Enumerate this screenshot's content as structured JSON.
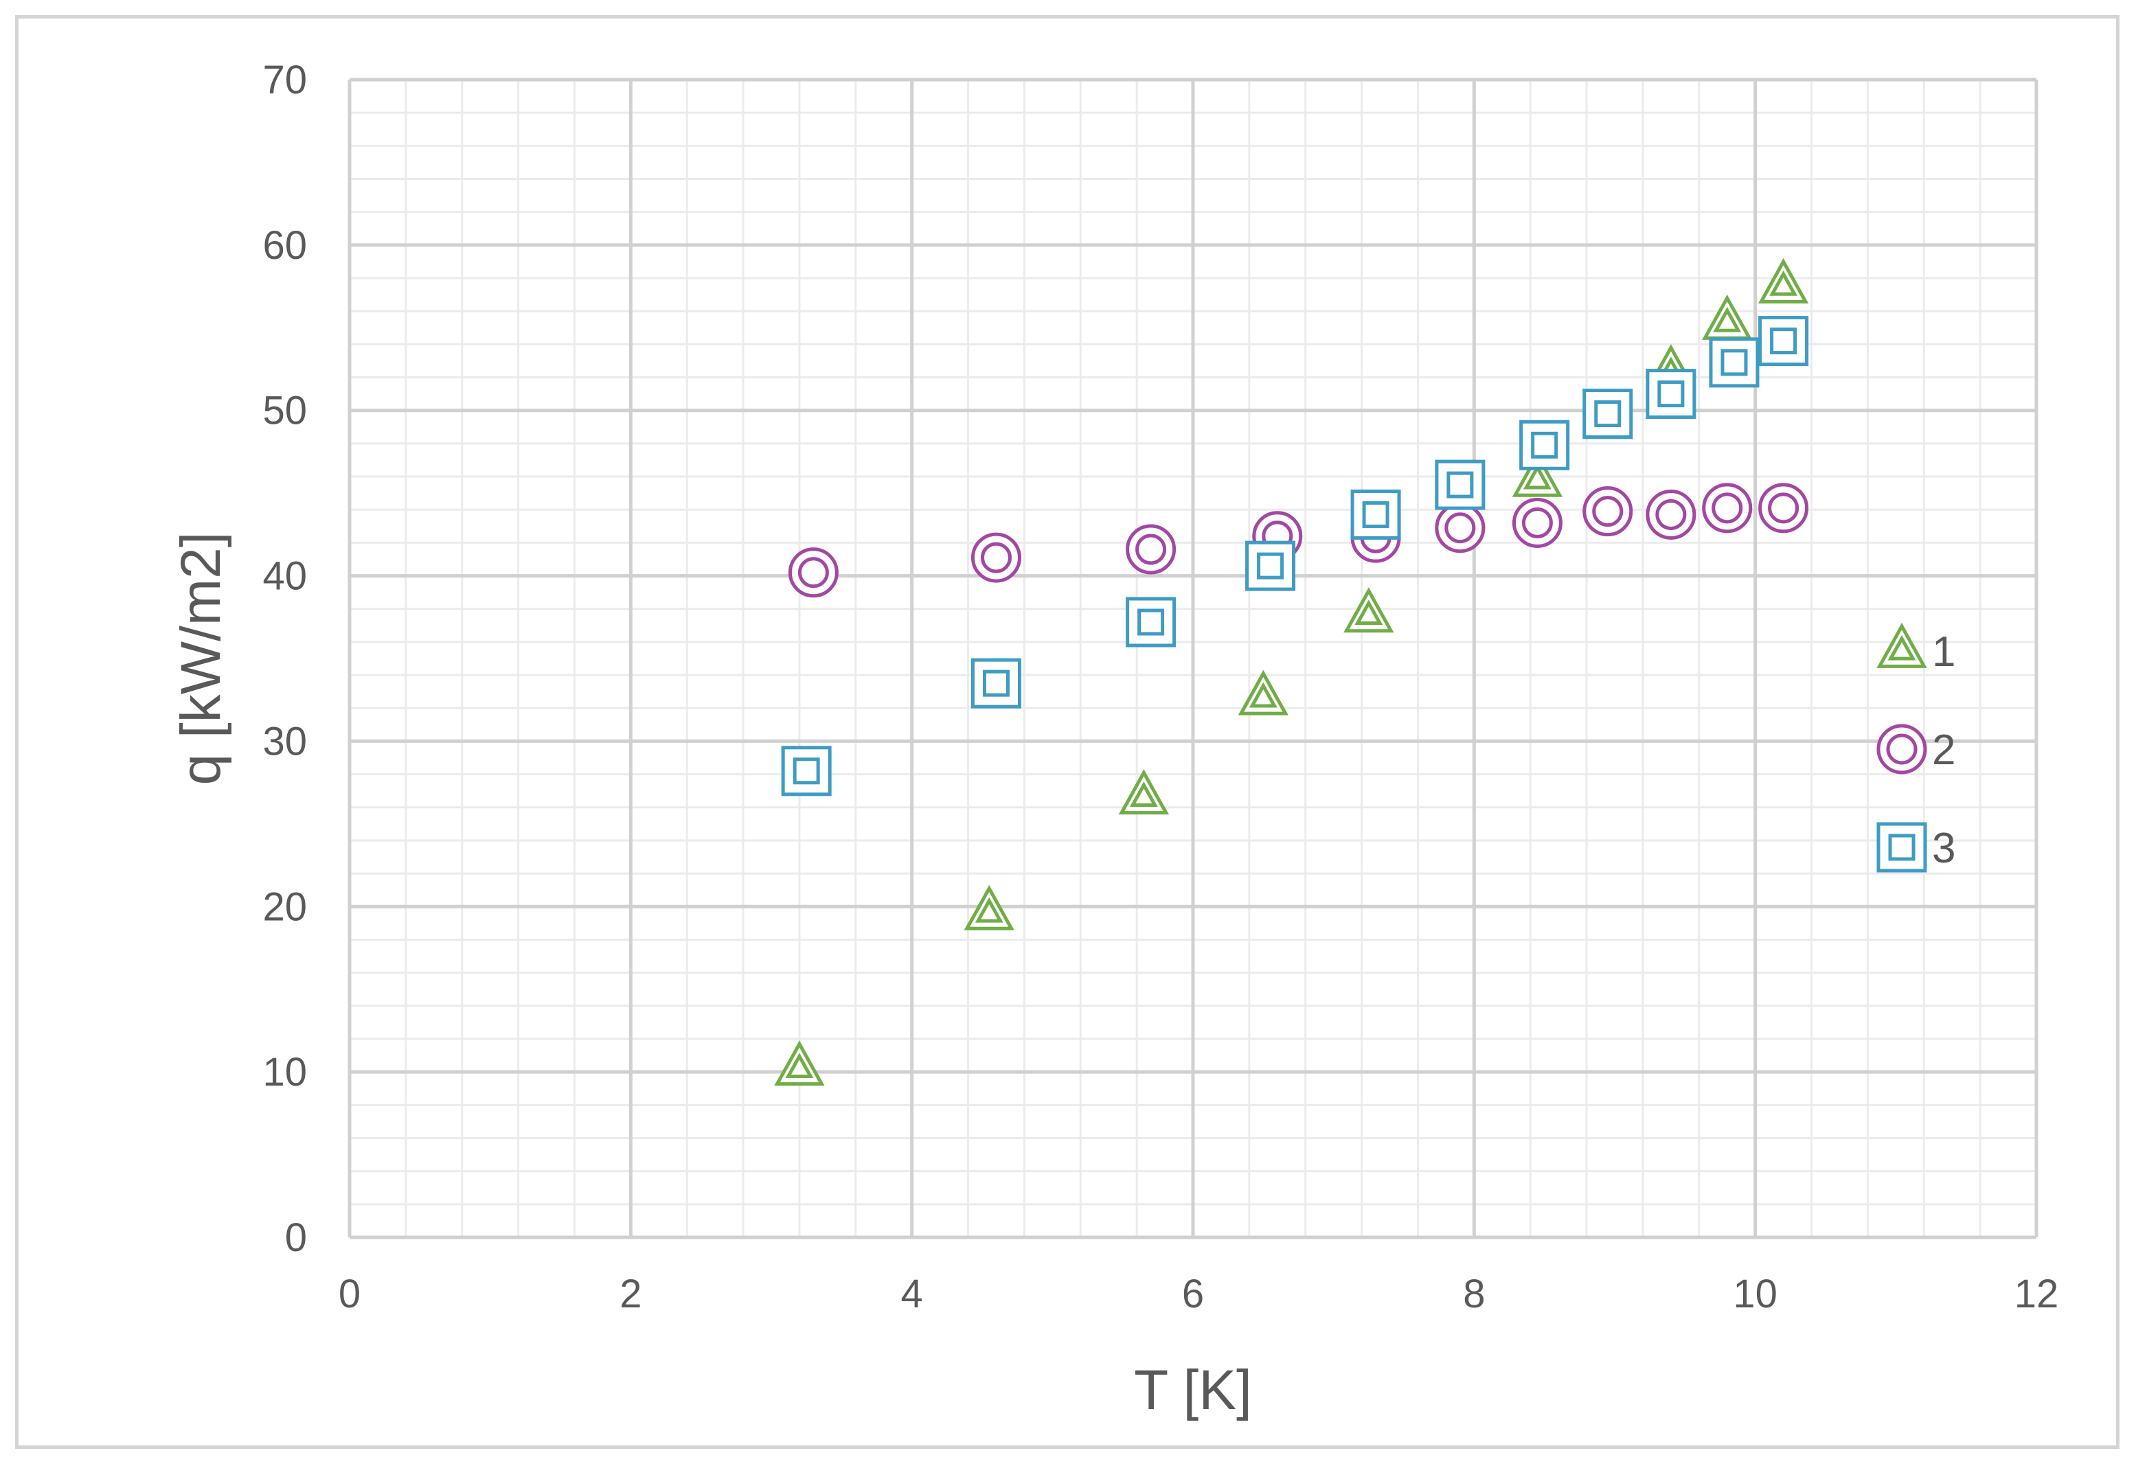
{
  "chart_data": {
    "type": "scatter",
    "title": "",
    "xlabel": "T [K]",
    "ylabel": "q [kW/m2]",
    "xlim": [
      0,
      12
    ],
    "ylim": [
      0,
      70
    ],
    "xticks": [
      0,
      2,
      4,
      6,
      8,
      10,
      12
    ],
    "yticks": [
      0,
      10,
      20,
      30,
      40,
      50,
      60,
      70
    ],
    "grid": "major and minor",
    "legend_position": "right",
    "series": [
      {
        "name": "1",
        "marker": "triangle",
        "color": "#70AD47",
        "points": [
          [
            3.2,
            10.2
          ],
          [
            4.55,
            19.6
          ],
          [
            5.65,
            26.6
          ],
          [
            6.5,
            32.6
          ],
          [
            7.25,
            37.6
          ],
          [
            8.45,
            45.8
          ],
          [
            8.95,
            49.3
          ],
          [
            9.4,
            52.3
          ],
          [
            9.8,
            55.3
          ],
          [
            10.2,
            57.5
          ]
        ]
      },
      {
        "name": "2",
        "marker": "circle",
        "color": "#A347A3",
        "points": [
          [
            3.3,
            40.2
          ],
          [
            4.6,
            41.1
          ],
          [
            5.7,
            41.6
          ],
          [
            6.6,
            42.4
          ],
          [
            7.3,
            42.3
          ],
          [
            7.9,
            42.9
          ],
          [
            8.45,
            43.2
          ],
          [
            8.95,
            43.9
          ],
          [
            9.4,
            43.7
          ],
          [
            9.8,
            44.1
          ],
          [
            10.2,
            44.1
          ]
        ]
      },
      {
        "name": "3",
        "marker": "square",
        "color": "#3E9CC4",
        "points": [
          [
            3.25,
            28.2
          ],
          [
            4.6,
            33.5
          ],
          [
            5.7,
            37.2
          ],
          [
            6.55,
            40.6
          ],
          [
            7.3,
            43.7
          ],
          [
            7.9,
            45.5
          ],
          [
            8.5,
            47.9
          ],
          [
            8.95,
            49.8
          ],
          [
            9.4,
            51.0
          ],
          [
            9.85,
            52.9
          ],
          [
            10.2,
            54.2
          ]
        ]
      }
    ]
  }
}
